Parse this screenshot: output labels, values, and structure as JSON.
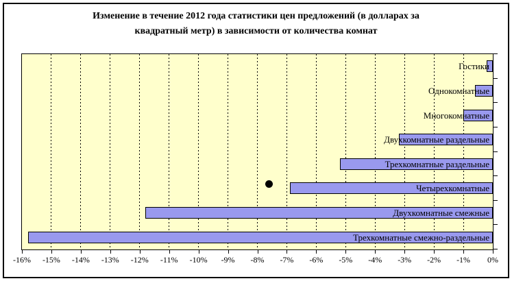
{
  "title": {
    "lines": [
      "Изменение в течение 2012 года статистики цен предложений (в долларах за",
      "квадратный метр) в зависимости от количества комнат"
    ]
  },
  "chart_data": {
    "type": "bar",
    "orientation": "horizontal",
    "title": "Изменение в течение 2012 года статистики цен предложений (в долларах за квадратный метр) в зависимости от количества комнат",
    "categories": [
      "Гостики",
      "Однокомнатные",
      "Многокомнатные",
      "Двухкомнатные раздельные",
      "Трехкомнатные раздельные",
      "Четырехкомнатные",
      "Двухкомнатные смежные",
      "Трехкомнатные смежно-раздельные"
    ],
    "values": [
      -0.2,
      -0.6,
      -1.0,
      -3.2,
      -5.2,
      -6.9,
      -11.8,
      -15.8
    ],
    "value_unit": "%",
    "xlabel": "",
    "ylabel": "",
    "xlim": [
      -16,
      0
    ],
    "x_tick_labels": [
      "-16%",
      "-15%",
      "-14%",
      "-13%",
      "-12%",
      "-11%",
      "-10%",
      "-9%",
      "-8%",
      "-7%",
      "-6%",
      "-5%",
      "-4%",
      "-3%",
      "-2%",
      "-1%",
      "0%"
    ],
    "grid": "vertical-dashed",
    "legend": "none",
    "marker_point": {
      "shape": "filled-circle",
      "x": -7.6,
      "category": "Четырехкомнатные",
      "color": "#000000"
    },
    "colors": {
      "plot_bg": "#FFFFCC",
      "bar_fill": "#9999EE",
      "bar_border": "#000000",
      "axis": "#000000",
      "text": "#000000",
      "outer_border": "#000000"
    }
  }
}
